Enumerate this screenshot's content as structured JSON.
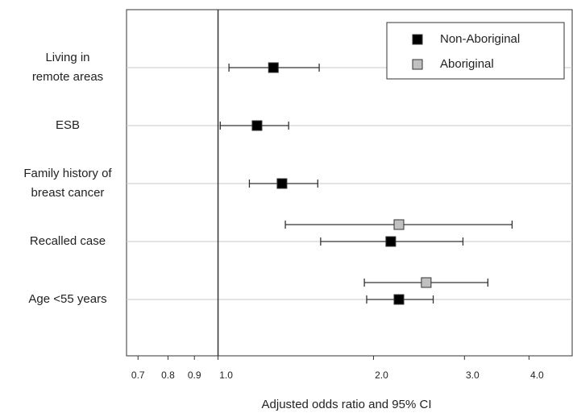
{
  "chart_data": {
    "type": "forest",
    "x_label": "Adjusted odds ratio and 95% CI",
    "categories": [
      [
        "Living in",
        "remote areas"
      ],
      [
        "ESB"
      ],
      [
        "Family history of",
        "breast cancer"
      ],
      [
        "Recalled case"
      ],
      [
        "Age <55 years"
      ]
    ],
    "series": [
      {
        "name": "Non-Aboriginal",
        "color": "#000000",
        "values": [
          1.28,
          1.19,
          1.33,
          2.16,
          2.24
        ],
        "lower": [
          1.05,
          1.01,
          1.15,
          1.58,
          1.94
        ],
        "upper": [
          1.57,
          1.37,
          1.56,
          2.98,
          2.61
        ]
      },
      {
        "name": "Aboriginal",
        "color": "#c0c0c0",
        "values": [
          null,
          null,
          null,
          2.24,
          2.53
        ],
        "lower": [
          null,
          null,
          null,
          1.35,
          1.92
        ],
        "upper": [
          null,
          null,
          null,
          3.71,
          3.33
        ]
      }
    ],
    "xscale": "log",
    "xlim": [
      0.665,
      4.85
    ],
    "xticks": [
      0.7,
      0.8,
      0.9,
      {
        "value": 1,
        "label": "1.0"
      },
      {
        "value": 2,
        "label": "2.0"
      },
      {
        "value": 3,
        "label": "3.0"
      },
      {
        "value": 4,
        "label": "4.0"
      }
    ],
    "reference_line": 1,
    "grid": true,
    "legend": "upper right"
  }
}
